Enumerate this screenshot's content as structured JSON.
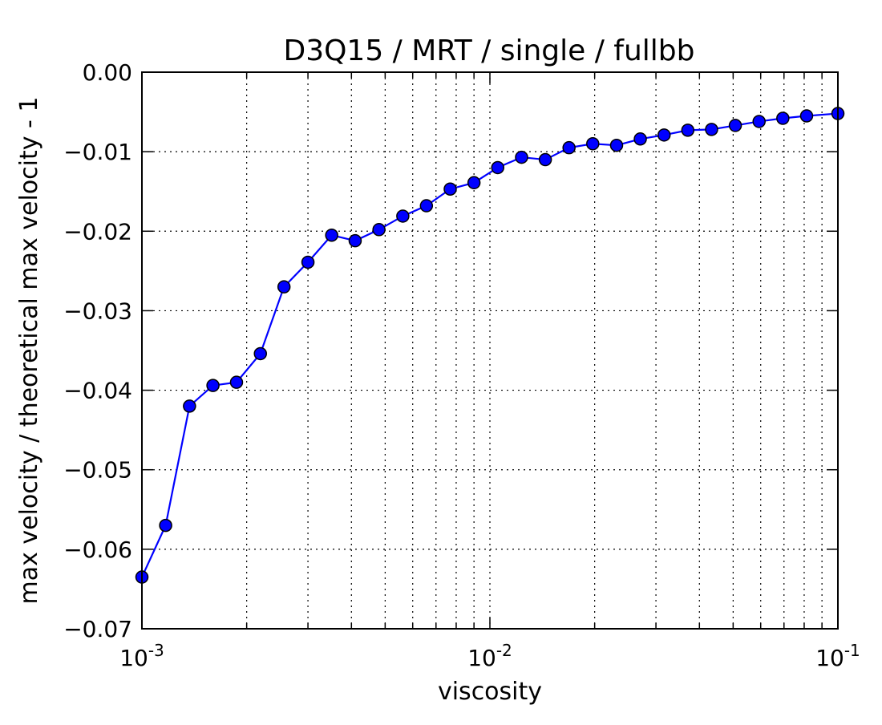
{
  "chart_data": {
    "type": "line",
    "title": "D3Q15 / MRT / single / fullbb",
    "xlabel": "viscosity",
    "ylabel": "max velocity / theoretical max velocity - 1",
    "xscale": "log",
    "xlim": [
      0.001,
      0.1
    ],
    "ylim": [
      -0.07,
      0.0
    ],
    "grid": true,
    "x_ticks": [
      {
        "base": "10",
        "exp": "-3"
      },
      {
        "base": "10",
        "exp": "-2"
      },
      {
        "base": "10",
        "exp": "-1"
      }
    ],
    "y_ticks": [
      "0.00",
      "−0.01",
      "−0.02",
      "−0.03",
      "−0.04",
      "−0.05",
      "−0.06",
      "−0.07"
    ],
    "y_tick_values": [
      0.0,
      -0.01,
      -0.02,
      -0.03,
      -0.04,
      -0.05,
      -0.06,
      -0.07
    ],
    "series": [
      {
        "color": "#0000ff",
        "marker": "circle",
        "x": [
          0.001,
          0.00117,
          0.00137,
          0.0016,
          0.00187,
          0.00219,
          0.00256,
          0.003,
          0.00351,
          0.0041,
          0.0048,
          0.00562,
          0.00657,
          0.00769,
          0.009,
          0.01053,
          0.01233,
          0.01443,
          0.01688,
          0.01975,
          0.02312,
          0.02705,
          0.03166,
          0.03704,
          0.04335,
          0.05073,
          0.05937,
          0.06947,
          0.0813,
          0.1
        ],
        "y": [
          -0.0635,
          -0.057,
          -0.042,
          -0.0394,
          -0.039,
          -0.0354,
          -0.027,
          -0.0239,
          -0.0205,
          -0.0212,
          -0.0198,
          -0.0181,
          -0.0168,
          -0.0147,
          -0.0139,
          -0.012,
          -0.0107,
          -0.011,
          -0.0095,
          -0.009,
          -0.0092,
          -0.0084,
          -0.0079,
          -0.0073,
          -0.0072,
          -0.0067,
          -0.0062,
          -0.0058,
          -0.0055,
          -0.0052
        ]
      }
    ]
  }
}
